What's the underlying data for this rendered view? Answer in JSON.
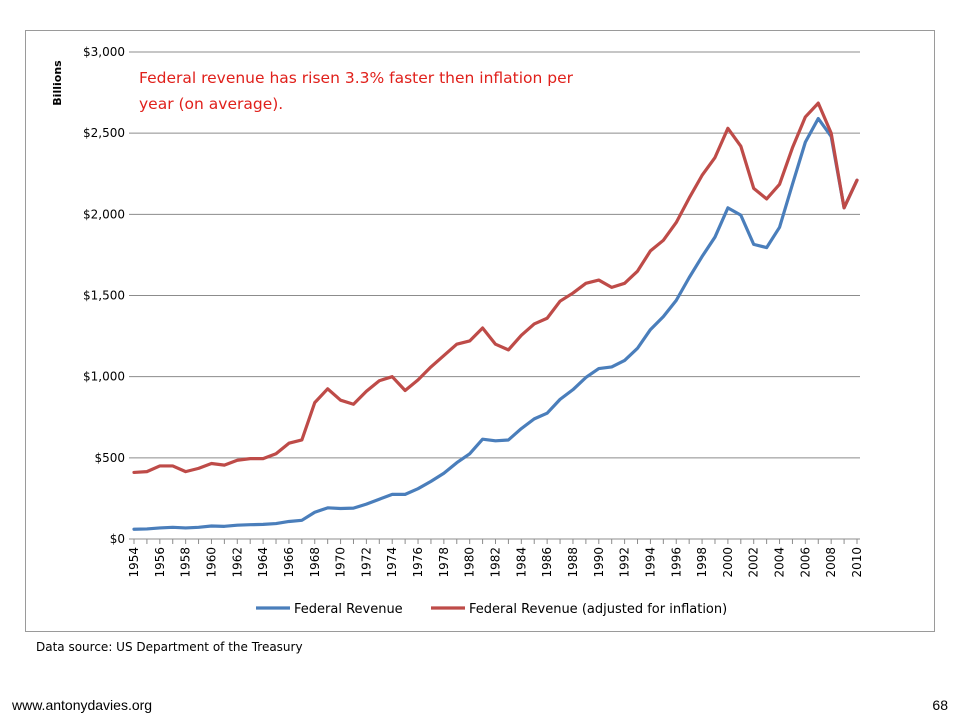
{
  "chart_data": {
    "type": "line",
    "title": "",
    "ylabel": "Billions",
    "xlabel": "",
    "ylim": [
      0,
      3000
    ],
    "y_ticks": [
      0,
      500,
      1000,
      1500,
      2000,
      2500,
      3000
    ],
    "y_tick_labels": [
      "$0",
      "$500",
      "$1,000",
      "$1,500",
      "$2,000",
      "$2,500",
      "$3,000"
    ],
    "grid": true,
    "legend_position": "bottom",
    "annotation": "Federal revenue has risen 3.3% faster then inflation per year (on average).",
    "x": [
      1954,
      1955,
      1956,
      1957,
      1958,
      1959,
      1960,
      1961,
      1962,
      1963,
      1964,
      1965,
      1966,
      1967,
      1968,
      1969,
      1970,
      1971,
      1972,
      1973,
      1974,
      1975,
      1976,
      1977,
      1978,
      1979,
      1980,
      1981,
      1982,
      1983,
      1984,
      1985,
      1986,
      1987,
      1988,
      1989,
      1990,
      1991,
      1992,
      1993,
      1994,
      1995,
      1996,
      1997,
      1998,
      1999,
      2000,
      2001,
      2002,
      2003,
      2004,
      2005,
      2006,
      2007,
      2008,
      2009,
      2010
    ],
    "x_tick_labels": [
      "1954",
      "1956",
      "1958",
      "1960",
      "1962",
      "1964",
      "1966",
      "1968",
      "1970",
      "1972",
      "1974",
      "1976",
      "1978",
      "1980",
      "1982",
      "1984",
      "1986",
      "1988",
      "1990",
      "1992",
      "1994",
      "1996",
      "1998",
      "2000",
      "2002",
      "2004",
      "2006",
      "2008",
      "2010"
    ],
    "series": [
      {
        "name": "Federal Revenue",
        "color": "#4a7ebb",
        "values": [
          60,
          62,
          68,
          72,
          68,
          72,
          80,
          78,
          85,
          88,
          90,
          95,
          108,
          115,
          165,
          192,
          188,
          190,
          215,
          245,
          275,
          275,
          310,
          355,
          405,
          470,
          525,
          615,
          605,
          610,
          680,
          740,
          775,
          860,
          920,
          995,
          1050,
          1060,
          1100,
          1175,
          1290,
          1370,
          1470,
          1610,
          1740,
          1860,
          2040,
          1995,
          1815,
          1795,
          1920,
          2185,
          2445,
          2590,
          2480,
          2040,
          2210
        ]
      },
      {
        "name": "Federal Revenue (adjusted for inflation)",
        "color": "#be4b48",
        "values": [
          410,
          415,
          450,
          450,
          415,
          435,
          465,
          455,
          485,
          495,
          495,
          525,
          590,
          610,
          840,
          925,
          855,
          830,
          910,
          975,
          1000,
          915,
          980,
          1060,
          1130,
          1200,
          1220,
          1300,
          1200,
          1165,
          1255,
          1325,
          1360,
          1465,
          1515,
          1575,
          1595,
          1550,
          1575,
          1650,
          1775,
          1840,
          1950,
          2100,
          2240,
          2350,
          2530,
          2420,
          2160,
          2095,
          2185,
          2410,
          2600,
          2685,
          2500,
          2040,
          2210
        ]
      }
    ]
  },
  "footer": {
    "source": "Data source: US Department of the Treasury",
    "url": "www.antonydavies.org",
    "page_number": "68"
  }
}
